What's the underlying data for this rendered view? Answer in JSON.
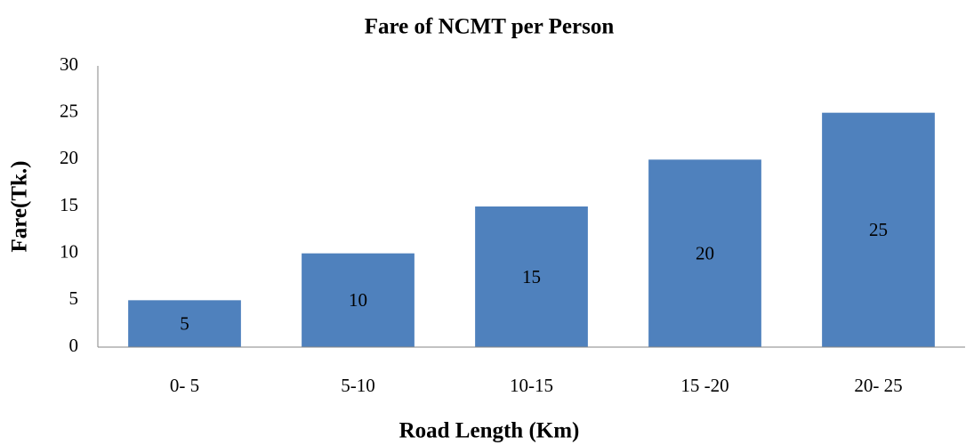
{
  "chart_data": {
    "type": "bar",
    "title": "Fare of NCMT per Person",
    "x_label": "Road Length (Km)",
    "y_label": "Fare(Tk.)",
    "categories": [
      "0- 5",
      "5-10",
      "10-15",
      "15 -20",
      "20- 25"
    ],
    "values": [
      5,
      10,
      15,
      20,
      25
    ],
    "color": "#4f81bd",
    "ylim": [
      0,
      30
    ],
    "yticks": [
      0,
      5,
      10,
      15,
      20,
      25,
      30
    ],
    "grid": false
  }
}
